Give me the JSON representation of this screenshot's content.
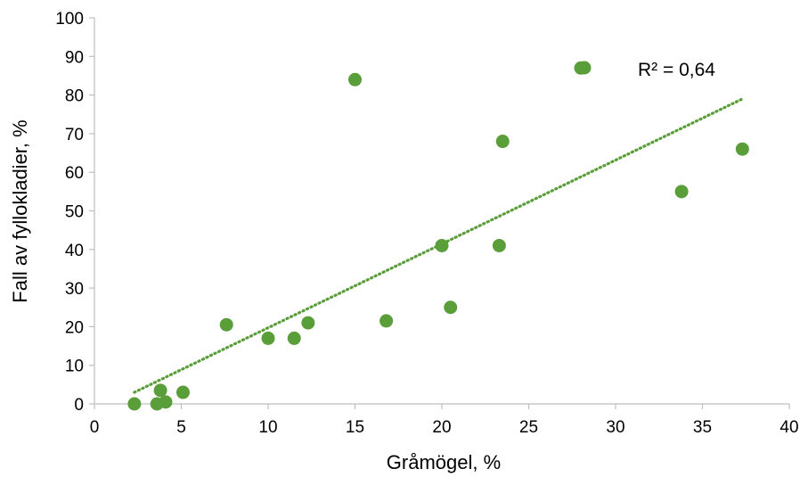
{
  "chart_data": {
    "type": "scatter",
    "xlabel": "Gråmögel, %",
    "ylabel": "Fall av fyllokladier, %",
    "xlim": [
      0,
      40
    ],
    "ylim": [
      0,
      100
    ],
    "x_ticks": [
      0,
      5,
      10,
      15,
      20,
      25,
      30,
      35,
      40
    ],
    "y_ticks": [
      0,
      10,
      20,
      30,
      40,
      50,
      60,
      70,
      80,
      90,
      100
    ],
    "grid": false,
    "marker_color": "#5a9e3a",
    "trendline": {
      "type": "linear",
      "style": "dotted",
      "color": "#5a9e3a",
      "x_range": [
        2.3,
        37.3
      ],
      "y_range": [
        3,
        79
      ]
    },
    "annotation": "R² = 0,64",
    "points": [
      {
        "x": 2.3,
        "y": 0
      },
      {
        "x": 3.6,
        "y": 0
      },
      {
        "x": 3.8,
        "y": 3.5
      },
      {
        "x": 4.1,
        "y": 0.5
      },
      {
        "x": 5.1,
        "y": 3
      },
      {
        "x": 7.6,
        "y": 20.5
      },
      {
        "x": 10.0,
        "y": 17
      },
      {
        "x": 11.5,
        "y": 17
      },
      {
        "x": 12.3,
        "y": 21
      },
      {
        "x": 15.0,
        "y": 84
      },
      {
        "x": 16.8,
        "y": 21.5
      },
      {
        "x": 20.0,
        "y": 41
      },
      {
        "x": 20.5,
        "y": 25
      },
      {
        "x": 23.3,
        "y": 41
      },
      {
        "x": 23.5,
        "y": 68
      },
      {
        "x": 28.0,
        "y": 87
      },
      {
        "x": 33.8,
        "y": 55
      },
      {
        "x": 37.3,
        "y": 66
      }
    ]
  }
}
